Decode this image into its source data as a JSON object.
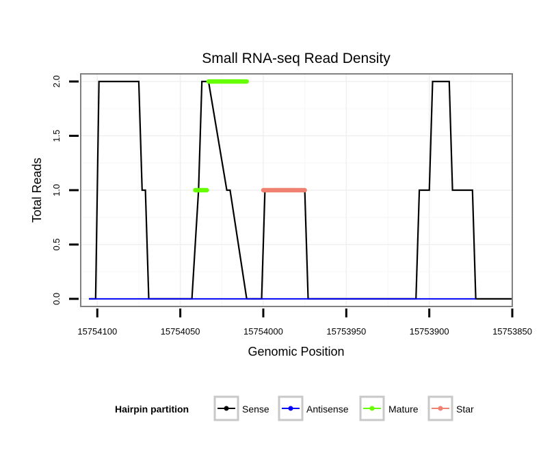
{
  "chart_data": {
    "type": "line",
    "title": "Small RNA-seq Read Density",
    "xlabel": "Genomic Position",
    "ylabel": "Total Reads",
    "xlim": [
      15754110,
      15753850
    ],
    "ylim": [
      -0.07,
      2.07
    ],
    "x_ticks": [
      15754100,
      15754050,
      15754000,
      15753950,
      15753900,
      15753850
    ],
    "x_tick_labels": [
      "15754100",
      "15754050",
      "15754000",
      "15753950",
      "15753900",
      "15753850"
    ],
    "y_ticks": [
      0.0,
      0.5,
      1.0,
      1.5,
      2.0
    ],
    "y_tick_labels": [
      "0.0",
      "0.5",
      "1.0",
      "1.5",
      "2.0"
    ],
    "grid": true,
    "legend": {
      "title": "Hairpin partition",
      "position": "bottom",
      "entries": [
        {
          "label": "Sense",
          "color": "#000000"
        },
        {
          "label": "Antisense",
          "color": "#0000ff"
        },
        {
          "label": "Mature",
          "color": "#66ff00"
        },
        {
          "label": "Star",
          "color": "#f08070"
        }
      ]
    },
    "series": [
      {
        "name": "Sense",
        "color": "#000000",
        "x": [
          15754105,
          15754101,
          15754099,
          15754075,
          15754073,
          15754071,
          15754069,
          15754043,
          15754039,
          15754037,
          15754033,
          15754022,
          15754020,
          15754010,
          15754005,
          15754001,
          15753999,
          15753975,
          15753973,
          15753908,
          15753906,
          15753900,
          15753898,
          15753888,
          15753886,
          15753874,
          15753872,
          15753850
        ],
        "y": [
          0,
          0,
          2,
          2,
          1,
          1,
          0,
          0,
          1,
          2,
          2,
          1,
          1,
          0,
          0,
          0,
          1,
          1,
          0,
          0,
          1,
          1,
          2,
          2,
          1,
          1,
          0,
          0
        ]
      },
      {
        "name": "Antisense",
        "color": "#0000ff",
        "x": [
          15754105,
          15753872
        ],
        "y": [
          0,
          0
        ]
      },
      {
        "name": "Mature",
        "color": "#66ff00",
        "segments": [
          {
            "x": [
              15754041,
              15754034
            ],
            "y": [
              1,
              1
            ]
          },
          {
            "x": [
              15754033,
              15754010
            ],
            "y": [
              2,
              2
            ]
          }
        ]
      },
      {
        "name": "Star",
        "color": "#f08070",
        "segments": [
          {
            "x": [
              15754000,
              15753975
            ],
            "y": [
              1,
              1
            ]
          }
        ]
      }
    ]
  }
}
